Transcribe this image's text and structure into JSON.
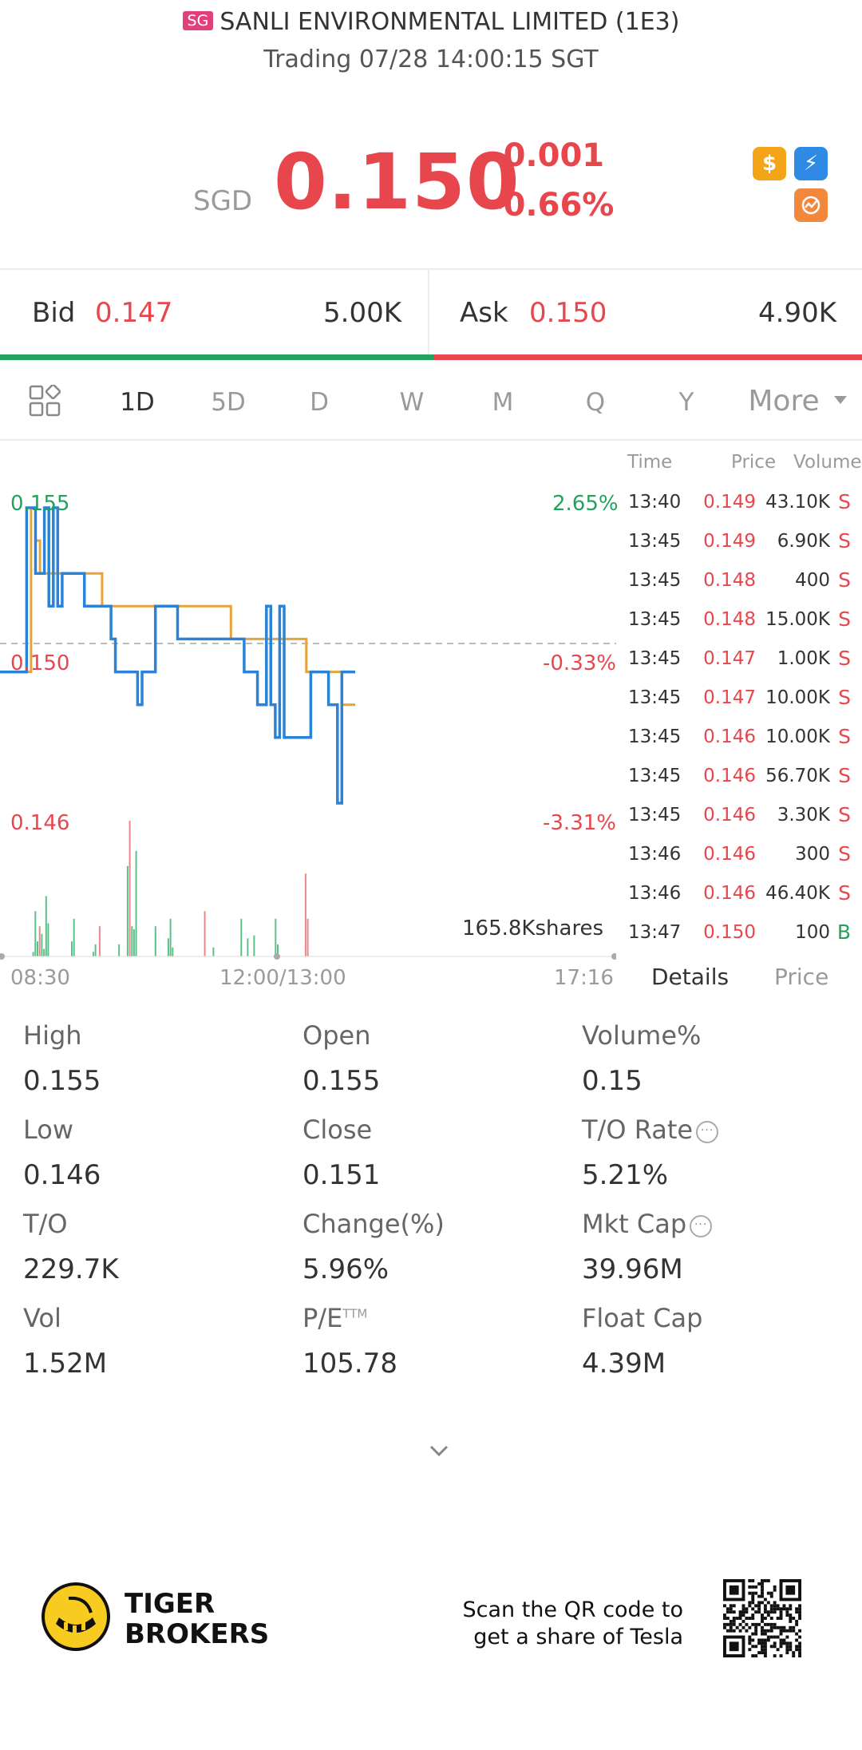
{
  "header": {
    "market_badge": "SG",
    "title": "SANLI ENVIRONMENTAL LIMITED (1E3)",
    "status": "Trading 07/28 14:00:15 SGT"
  },
  "quote": {
    "currency": "SGD",
    "price": "0.150",
    "change": "-0.001",
    "change_pct": "-0.66%",
    "icons": [
      "dollar-icon",
      "flash-icon",
      "chart-badge-icon"
    ]
  },
  "bidask": {
    "bid_label": "Bid",
    "bid_price": "0.147",
    "bid_qty": "5.00K",
    "ask_label": "Ask",
    "ask_price": "0.150",
    "ask_qty": "4.90K"
  },
  "tabs": {
    "items": [
      "1D",
      "5D",
      "D",
      "W",
      "M",
      "Q",
      "Y"
    ],
    "active": "1D",
    "more": "More"
  },
  "chart_data": {
    "type": "line",
    "y_high": "0.155",
    "y_mid": "0.150",
    "y_low": "0.146",
    "pct_high": "2.65%",
    "pct_mid": "-0.33%",
    "pct_low": "-3.31%",
    "volume_label": "165.8Kshares",
    "x_labels": [
      "08:30",
      "12:00/13:00",
      "17:16"
    ],
    "ylim": [
      0.146,
      0.155
    ],
    "series": [
      {
        "color": "#2a83d6",
        "values": [
          0.15,
          0.15,
          0.15,
          0.15,
          0.15,
          0.15,
          0.155,
          0.155,
          0.153,
          0.153,
          0.155,
          0.152,
          0.155,
          0.152,
          0.153,
          0.153,
          0.153,
          0.153,
          0.153,
          0.152,
          0.152,
          0.152,
          0.152,
          0.152,
          0.152,
          0.151,
          0.15,
          0.15,
          0.15,
          0.15,
          0.15,
          0.149,
          0.15,
          0.15,
          0.15,
          0.152,
          0.152,
          0.152,
          0.152,
          0.152,
          0.151,
          0.151,
          0.151,
          0.151,
          0.151,
          0.151,
          0.151,
          0.151,
          0.151,
          0.151,
          0.151,
          0.151,
          0.151,
          0.151,
          0.151,
          0.15,
          0.15,
          0.15,
          0.149,
          0.149,
          0.152,
          0.149,
          0.148,
          0.152,
          0.148,
          0.148,
          0.148,
          0.148,
          0.148,
          0.148,
          0.15,
          0.15,
          0.15,
          0.15,
          0.149,
          0.149,
          0.146,
          0.15,
          0.15,
          0.15,
          0.15
        ]
      },
      {
        "color": "#e8a23a",
        "values": [
          0.15,
          0.15,
          0.15,
          0.15,
          0.15,
          0.15,
          0.15,
          0.155,
          0.154,
          0.153,
          0.153,
          0.153,
          0.153,
          0.153,
          0.153,
          0.153,
          0.153,
          0.153,
          0.153,
          0.153,
          0.153,
          0.153,
          0.153,
          0.152,
          0.152,
          0.152,
          0.152,
          0.152,
          0.152,
          0.152,
          0.152,
          0.152,
          0.152,
          0.152,
          0.152,
          0.152,
          0.152,
          0.152,
          0.152,
          0.152,
          0.152,
          0.152,
          0.152,
          0.152,
          0.152,
          0.152,
          0.152,
          0.152,
          0.152,
          0.152,
          0.152,
          0.152,
          0.151,
          0.151,
          0.151,
          0.151,
          0.151,
          0.151,
          0.151,
          0.151,
          0.151,
          0.151,
          0.151,
          0.151,
          0.151,
          0.151,
          0.151,
          0.151,
          0.151,
          0.15,
          0.15,
          0.15,
          0.15,
          0.15,
          0.15,
          0.15,
          0.15,
          0.149,
          0.149,
          0.149,
          0.149
        ]
      }
    ],
    "volumes": [
      0,
      0,
      0,
      0,
      0,
      0,
      0,
      0,
      0,
      0,
      0,
      0,
      0,
      0,
      3,
      30,
      10,
      20,
      15,
      5,
      40,
      22,
      0,
      0,
      0,
      0,
      0,
      0,
      0,
      0,
      0,
      0,
      10,
      25,
      0,
      0,
      0,
      0,
      0,
      0,
      0,
      0,
      3,
      8,
      0,
      20,
      0,
      0,
      0,
      0,
      0,
      0,
      0,
      0,
      8,
      0,
      0,
      0,
      60,
      90,
      20,
      18,
      70,
      0,
      0,
      0,
      0,
      0,
      0,
      0,
      0,
      20,
      0,
      0,
      0,
      0,
      0,
      12,
      25,
      6,
      0,
      0,
      0,
      0,
      0,
      0,
      0,
      0,
      0,
      0,
      0,
      0,
      0,
      0,
      30,
      0,
      0,
      0,
      6,
      0,
      0,
      0,
      0,
      0,
      0,
      0,
      0,
      0,
      0,
      0,
      0,
      25,
      0,
      0,
      12,
      0,
      0,
      14,
      0,
      0,
      0,
      0,
      0,
      0,
      0,
      0,
      0,
      25,
      8,
      0,
      0,
      0,
      0,
      0,
      0,
      0,
      0,
      0,
      0,
      0,
      0,
      55,
      25,
      0,
      0,
      0,
      0,
      0,
      0,
      0,
      0,
      0,
      0,
      0,
      0,
      0,
      0,
      0,
      0,
      0
    ]
  },
  "trades": {
    "headers": [
      "Time",
      "Price",
      "Volume"
    ],
    "rows": [
      {
        "time": "13:40",
        "price": "0.149",
        "volume": "43.10K",
        "side": "S"
      },
      {
        "time": "13:45",
        "price": "0.149",
        "volume": "6.90K",
        "side": "S"
      },
      {
        "time": "13:45",
        "price": "0.148",
        "volume": "400",
        "side": "S"
      },
      {
        "time": "13:45",
        "price": "0.148",
        "volume": "15.00K",
        "side": "S"
      },
      {
        "time": "13:45",
        "price": "0.147",
        "volume": "1.00K",
        "side": "S"
      },
      {
        "time": "13:45",
        "price": "0.147",
        "volume": "10.00K",
        "side": "S"
      },
      {
        "time": "13:45",
        "price": "0.146",
        "volume": "10.00K",
        "side": "S"
      },
      {
        "time": "13:45",
        "price": "0.146",
        "volume": "56.70K",
        "side": "S"
      },
      {
        "time": "13:45",
        "price": "0.146",
        "volume": "3.30K",
        "side": "S"
      },
      {
        "time": "13:46",
        "price": "0.146",
        "volume": "300",
        "side": "S"
      },
      {
        "time": "13:46",
        "price": "0.146",
        "volume": "46.40K",
        "side": "S"
      },
      {
        "time": "13:47",
        "price": "0.150",
        "volume": "100",
        "side": "B"
      }
    ],
    "tab_details": "Details",
    "tab_price": "Price"
  },
  "stats": {
    "high_label": "High",
    "high": "0.155",
    "open_label": "Open",
    "open": "0.155",
    "volpct_label": "Volume%",
    "volpct": "0.15",
    "low_label": "Low",
    "low": "0.146",
    "close_label": "Close",
    "close": "0.151",
    "torate_label": "T/O Rate",
    "torate": "5.21%",
    "to_label": "T/O",
    "to": "229.7K",
    "changepct_label": "Change(%)",
    "changepct": "5.96%",
    "mktcap_label": "Mkt Cap",
    "mktcap": "39.96M",
    "vol_label": "Vol",
    "vol": "1.52M",
    "pe_label": "P/E",
    "pe_sup": "TTM",
    "pe": "105.78",
    "floatcap_label": "Float Cap",
    "floatcap": "4.39M"
  },
  "footer": {
    "brand_line1": "TIGER",
    "brand_line2": "BROKERS",
    "scan_line1": "Scan the QR code to",
    "scan_line2": "get a share of Tesla"
  }
}
